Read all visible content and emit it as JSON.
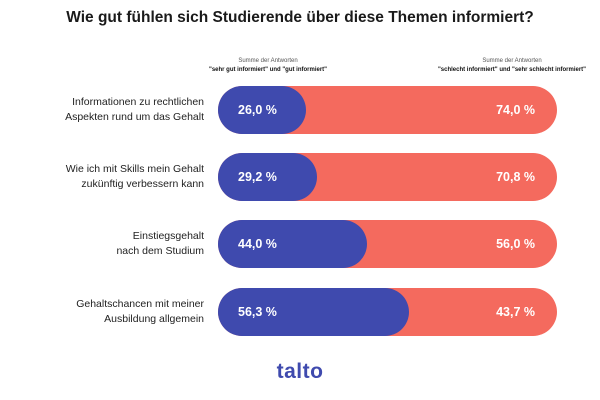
{
  "colors": {
    "positive": "#3F4AAE",
    "negative": "#F46A5E",
    "logo": "#3F4AAE"
  },
  "header_left": {
    "line1": "Summe der Antworten",
    "line2": "\"sehr gut informiert\" und \"gut informiert\""
  },
  "header_right": {
    "line1": "Summe der Antworten",
    "line2": "\"schlecht informiert\" und \"sehr schlecht informiert\""
  },
  "chart_data": {
    "type": "bar",
    "orientation": "horizontal-stacked",
    "title": "Wie gut fühlen sich Studierende über diese Themen informiert?",
    "categories": [
      [
        "Informationen zu rechtlichen",
        "Aspekten rund um das Gehalt"
      ],
      [
        "Wie ich mit Skills mein Gehalt",
        "zukünftig verbessern kann"
      ],
      [
        "Einstiegsgehalt",
        "nach dem Studium"
      ],
      [
        "Gehaltschancen mit meiner",
        "Ausbildung allgemein"
      ]
    ],
    "series": [
      {
        "name": "sehr gut informiert + gut informiert",
        "values": [
          26.0,
          29.2,
          44.0,
          56.3
        ]
      },
      {
        "name": "schlecht informiert + sehr schlecht informiert",
        "values": [
          74.0,
          70.8,
          56.0,
          43.7
        ]
      }
    ],
    "value_labels_positive": [
      "26,0 %",
      "29,2 %",
      "44,0 %",
      "56,3 %"
    ],
    "value_labels_negative": [
      "74,0 %",
      "70,8 %",
      "56,0 %",
      "43,7 %"
    ],
    "xlim": [
      0,
      100
    ]
  },
  "brand": {
    "logo_text": "talto"
  }
}
